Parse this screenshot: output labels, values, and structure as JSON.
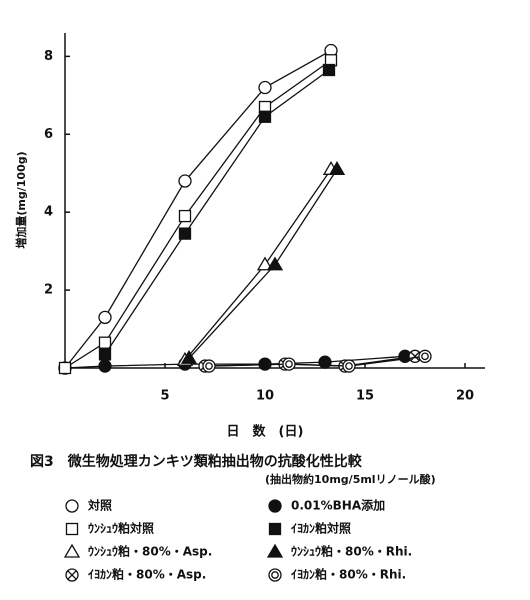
{
  "chart_data": {
    "type": "line",
    "ylabel": "増加量(mg/100g)",
    "xlabel": "日　数　(日)",
    "title": "図3　微生物処理カンキツ類粕抽出物の抗酸化性比較",
    "subtitle": "(抽出物約10mg/5mlリノール酸)",
    "xlim": [
      0,
      21
    ],
    "ylim": [
      0,
      8.6
    ],
    "xticks": [
      5,
      10,
      15,
      20
    ],
    "yticks": [
      2,
      4,
      6,
      8
    ],
    "series": [
      {
        "name": "対照",
        "marker": "circle-open",
        "x": [
          0,
          2,
          6,
          10,
          13.3
        ],
        "values": [
          0,
          1.3,
          4.8,
          7.2,
          8.15
        ]
      },
      {
        "name": "0.01%BHA添加",
        "marker": "circle-filled",
        "x": [
          0,
          2,
          6,
          10,
          13,
          17
        ],
        "values": [
          0,
          0.05,
          0.1,
          0.1,
          0.15,
          0.3
        ]
      },
      {
        "name": "ｳﾝｼｭｳ粕対照",
        "marker": "square-open",
        "x": [
          0,
          2,
          6,
          10,
          13.3
        ],
        "values": [
          0,
          0.65,
          3.9,
          6.7,
          7.9
        ]
      },
      {
        "name": "ｲﾖｶﾝ粕対照",
        "marker": "square-filled",
        "x": [
          2,
          6,
          10,
          13.2
        ],
        "values": [
          0.35,
          3.45,
          6.45,
          7.65
        ]
      },
      {
        "name": "ｳﾝｼｭｳ粕・80%・Asp.",
        "marker": "triangle-open",
        "x": [
          6,
          10,
          13.3
        ],
        "values": [
          0.2,
          2.65,
          5.1
        ]
      },
      {
        "name": "ｳﾝｼｭｳ粕・80%・Rhi.",
        "marker": "triangle-filled",
        "x": [
          6.2,
          10.5,
          13.6
        ],
        "values": [
          0.25,
          2.65,
          5.1
        ]
      },
      {
        "name": "ｲﾖｶﾝ粕・80%・Asp.",
        "marker": "circle-x",
        "x": [
          7,
          11,
          14,
          17.5
        ],
        "values": [
          0.05,
          0.1,
          0.05,
          0.3
        ]
      },
      {
        "name": "ｲﾖｶﾝ粕・80%・Rhi.",
        "marker": "circle-double",
        "x": [
          7.2,
          11.2,
          14.2,
          18
        ],
        "values": [
          0.05,
          0.1,
          0.05,
          0.3
        ]
      }
    ]
  }
}
